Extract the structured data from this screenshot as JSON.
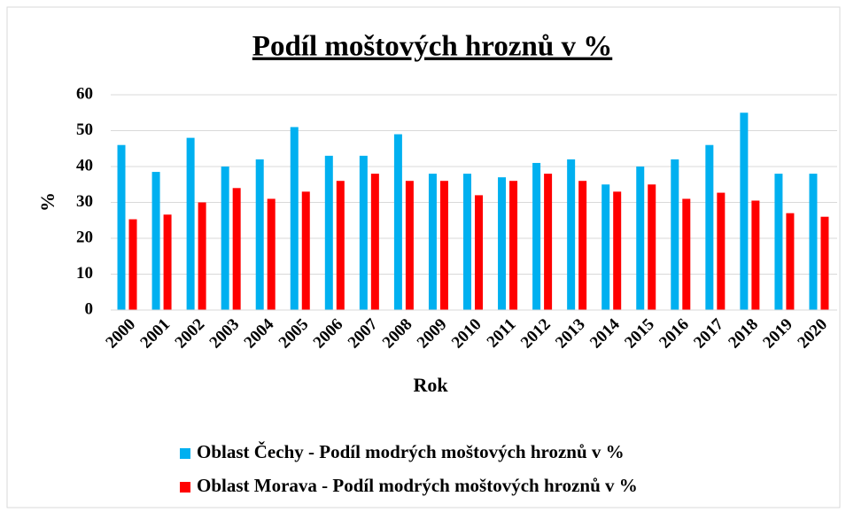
{
  "chart_data": {
    "type": "bar",
    "title": "Podíl moštových hroznů v %",
    "x_label": "Rok",
    "y_label": "%",
    "categories": [
      "2000",
      "2001",
      "2002",
      "2003",
      "2004",
      "2005",
      "2006",
      "2007",
      "2008",
      "2009",
      "2010",
      "2011",
      "2012",
      "2013",
      "2014",
      "2015",
      "2016",
      "2017",
      "2018",
      "2019",
      "2020"
    ],
    "series": [
      {
        "name": "Oblast Čechy - Podíl modrých moštových hroznů v %",
        "color": "#00b0f0",
        "values": [
          46,
          38.5,
          48,
          40,
          42,
          51,
          43,
          43,
          49,
          38,
          38,
          37,
          41,
          42,
          35,
          40,
          42,
          46,
          55,
          38,
          38
        ]
      },
      {
        "name": "Oblast Morava - Podíl modrých moštových hroznů v %",
        "color": "#ff0000",
        "values": [
          25.3,
          26.6,
          30,
          34,
          31,
          33,
          36,
          38,
          36,
          36,
          32,
          36,
          38,
          36,
          33,
          35,
          31,
          32.7,
          30.5,
          27,
          26
        ]
      }
    ],
    "ylim": [
      0,
      60
    ],
    "yticks": [
      0,
      10,
      20,
      30,
      40,
      50,
      60
    ],
    "grid": true
  }
}
